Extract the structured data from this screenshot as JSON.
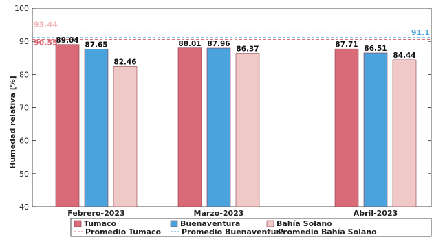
{
  "chart_data": {
    "type": "bar",
    "ylabel": "Humedad relativa [%]",
    "ylim": [
      40,
      100
    ],
    "yticks": [
      40,
      50,
      60,
      70,
      80,
      90,
      100
    ],
    "categories": [
      "Febrero-2023",
      "Marzo-2023",
      "Abril-2023"
    ],
    "series": [
      {
        "name": "Tumaco",
        "color": "#d96a78",
        "values": [
          89.04,
          88.01,
          87.71
        ]
      },
      {
        "name": "Buenaventura",
        "color": "#4aa3dc",
        "values": [
          87.65,
          87.96,
          86.51
        ]
      },
      {
        "name": "Bahía Solano",
        "color": "#f0c8c8",
        "values": [
          82.46,
          86.37,
          84.44
        ]
      }
    ],
    "averages": [
      {
        "name": "Promedio Tumaco",
        "value": 90.55,
        "label": "90.55",
        "color": "#d96a78",
        "label_side": "left"
      },
      {
        "name": "Promedio Buenaventura",
        "value": 91.1,
        "label": "91.1",
        "color": "#4aa3dc",
        "label_side": "right"
      },
      {
        "name": "Promedio Bahía Solano",
        "value": 93.44,
        "label": "93.44",
        "color": "#f0b8b8",
        "label_side": "left"
      }
    ],
    "grid": false,
    "legend_placement": "bottom"
  }
}
